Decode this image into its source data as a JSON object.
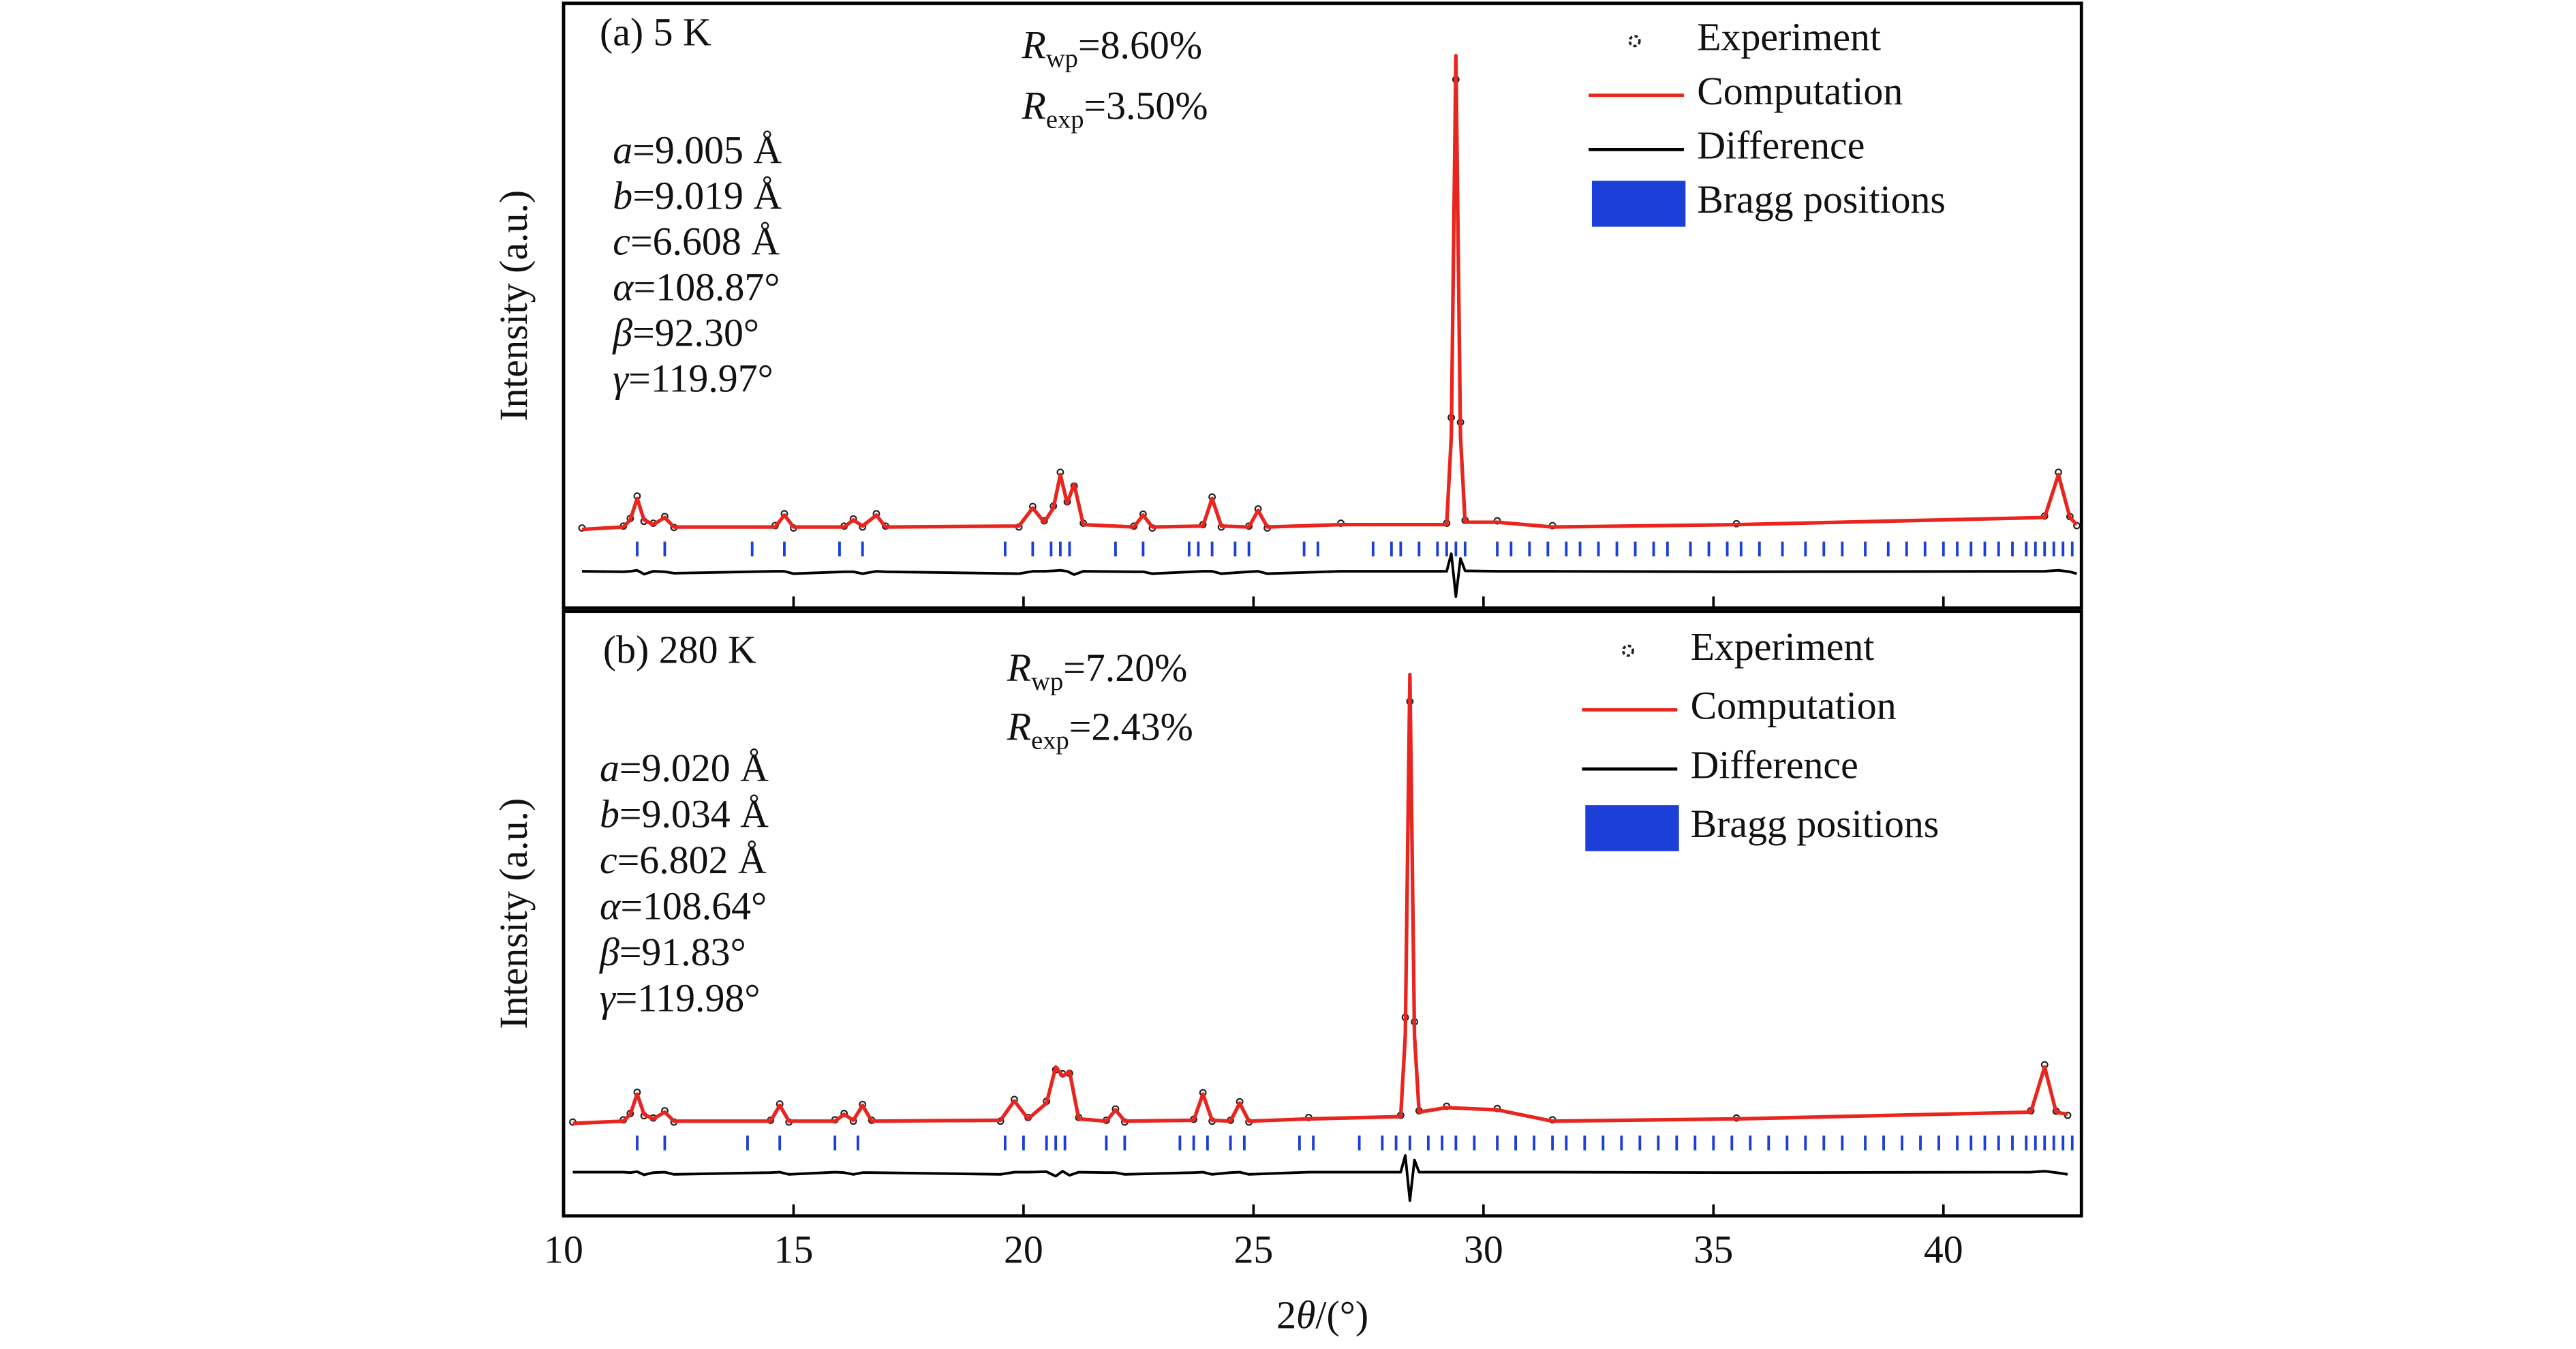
{
  "chart_data": [
    {
      "type": "line",
      "label": "(a) 5 K",
      "ylabel": "Intensity (a.u.)",
      "r_factors": [
        {
          "symbol": "R",
          "subscript": "wp",
          "text": "=8.60%"
        },
        {
          "symbol": "R",
          "subscript": "exp",
          "text": "=3.50%"
        }
      ],
      "lattice": [
        {
          "symbol": "a",
          "text": "=9.005 Å"
        },
        {
          "symbol": "b",
          "text": "=9.019 Å"
        },
        {
          "symbol": "c",
          "text": "=6.608 Å"
        },
        {
          "symbol": "α",
          "text": "=108.87°"
        },
        {
          "symbol": "β",
          "text": "=92.30°"
        },
        {
          "symbol": "γ",
          "text": "=119.97°"
        }
      ],
      "xlim": [
        10,
        43
      ],
      "ylim": [
        -16,
        111
      ],
      "xticks": [
        10,
        15,
        20,
        25,
        30,
        35,
        40
      ],
      "legend": "top-right",
      "x": [
        10.4,
        11.3,
        11.45,
        11.6,
        11.75,
        11.95,
        12.2,
        12.4,
        14.6,
        14.8,
        15.0,
        16.1,
        16.3,
        16.5,
        16.8,
        17.0,
        19.9,
        20.2,
        20.45,
        20.65,
        20.8,
        20.95,
        21.1,
        21.3,
        22.4,
        22.6,
        22.8,
        23.9,
        24.1,
        24.3,
        24.9,
        25.1,
        25.3,
        26.9,
        29.2,
        29.3,
        29.4,
        29.5,
        29.6,
        30.3,
        31.5,
        35.5,
        42.2,
        42.5,
        42.75,
        42.9
      ],
      "series": [
        {
          "name": "Experiment",
          "style": "points",
          "color": "#222222",
          "values": [
            0.8,
            1.2,
            2.8,
            7.5,
            2.2,
            1.8,
            3.2,
            0.9,
            1.3,
            3.8,
            0.8,
            1.2,
            2.7,
            1.0,
            3.8,
            1.2,
            1.0,
            5.3,
            2.3,
            5.4,
            12.5,
            6.3,
            9.6,
            1.8,
            1.2,
            3.7,
            0.8,
            1.5,
            7.3,
            1.0,
            1.2,
            4.8,
            0.8,
            1.8,
            1.8,
            24,
            95,
            23,
            2.4,
            2.3,
            1.3,
            1.7,
            3.3,
            12.5,
            3.2,
            1.3
          ]
        },
        {
          "name": "Computation",
          "style": "line",
          "color": "#e8251f",
          "values": [
            0.5,
            1,
            2.5,
            7,
            2.5,
            1.5,
            3,
            1,
            1,
            3.5,
            1,
            1,
            2.5,
            1.2,
            3.5,
            1,
            1.2,
            5,
            2,
            5,
            12,
            6,
            10,
            1.5,
            1,
            3.5,
            1,
            1.2,
            7,
            1.2,
            1,
            4.5,
            1,
            1.5,
            1.5,
            20,
            100,
            20,
            2,
            2,
            1,
            1.5,
            3,
            12,
            3,
            1.5
          ]
        },
        {
          "name": "Difference",
          "style": "line",
          "color": "#000000",
          "values": [
            -8.3,
            -8.4,
            -8.3,
            -8.1,
            -8.9,
            -8.3,
            -8.4,
            -8.7,
            -8.3,
            -8.3,
            -8.8,
            -8.4,
            -8.4,
            -8.8,
            -8.3,
            -8.4,
            -8.8,
            -8.3,
            -8.3,
            -8.2,
            -8.1,
            -8.3,
            -9.0,
            -8.3,
            -8.4,
            -8.4,
            -8.8,
            -8.3,
            -8.3,
            -8.8,
            -8.4,
            -8.3,
            -8.8,
            -8.3,
            -8.3,
            -4.6,
            -13.6,
            -5.6,
            -8.2,
            -8.3,
            -8.3,
            -8.4,
            -8.3,
            -8.1,
            -8.4,
            -8.8
          ]
        },
        {
          "name": "Bragg positions",
          "style": "ticks",
          "color": "#1c3fd8",
          "x": [
            11.6,
            12.2,
            14.1,
            14.8,
            16.0,
            16.5,
            19.6,
            20.2,
            20.6,
            20.8,
            21.0,
            22.0,
            22.6,
            23.6,
            23.8,
            24.1,
            24.6,
            24.9,
            26.1,
            26.4,
            27.6,
            28.0,
            28.2,
            28.6,
            29.0,
            29.2,
            29.4,
            29.6,
            30.3,
            30.6,
            31.0,
            31.4,
            31.8,
            32.1,
            32.5,
            32.9,
            33.3,
            33.7,
            34.0,
            34.5,
            34.9,
            35.3,
            35.6,
            36.0,
            36.5,
            37.0,
            37.4,
            37.8,
            38.3,
            38.8,
            39.2,
            39.6,
            40.0,
            40.3,
            40.6,
            40.9,
            41.2,
            41.5,
            41.8,
            42.0,
            42.2,
            42.4,
            42.6,
            42.8
          ]
        }
      ]
    },
    {
      "type": "line",
      "label": "(b) 280 K",
      "ylabel": "Intensity (a.u.)",
      "xlabel": {
        "prefix": "2",
        "symbol": "θ",
        "suffix": "/(°)"
      },
      "r_factors": [
        {
          "symbol": "R",
          "subscript": "wp",
          "text": "=7.20%"
        },
        {
          "symbol": "R",
          "subscript": "exp",
          "text": "=2.43%"
        }
      ],
      "lattice": [
        {
          "symbol": "a",
          "text": "=9.020 Å"
        },
        {
          "symbol": "b",
          "text": "=9.034 Å"
        },
        {
          "symbol": "c",
          "text": "=6.802 Å"
        },
        {
          "symbol": "α",
          "text": "=108.64°"
        },
        {
          "symbol": "β",
          "text": "=91.83°"
        },
        {
          "symbol": "γ",
          "text": "=119.98°"
        }
      ],
      "xlim": [
        10,
        43
      ],
      "ylim": [
        -20,
        114
      ],
      "xticks": [
        10,
        15,
        20,
        25,
        30,
        35,
        40
      ],
      "legend": "top-right",
      "x": [
        10.2,
        11.3,
        11.45,
        11.6,
        11.75,
        11.95,
        12.2,
        12.4,
        14.5,
        14.7,
        14.9,
        15.9,
        16.1,
        16.3,
        16.5,
        16.7,
        19.5,
        19.8,
        20.1,
        20.5,
        20.7,
        20.85,
        21.0,
        21.2,
        21.8,
        22.0,
        22.2,
        23.7,
        23.9,
        24.1,
        24.5,
        24.7,
        24.9,
        26.2,
        28.2,
        28.3,
        28.4,
        28.5,
        28.6,
        29.2,
        30.3,
        31.5,
        35.5,
        41.9,
        42.2,
        42.45,
        42.7
      ],
      "series": [
        {
          "name": "Experiment",
          "style": "points",
          "color": "#222222",
          "values": [
            0.8,
            1.3,
            2.7,
            7.4,
            2.2,
            1.7,
            3.3,
            0.8,
            1.2,
            4.8,
            0.8,
            1.3,
            2.7,
            1.0,
            4.7,
            1.2,
            1.0,
            5.8,
            1.8,
            5.4,
            12.4,
            11.5,
            11.6,
            1.8,
            1.2,
            3.7,
            0.8,
            1.4,
            7.3,
            1.0,
            1.2,
            5.3,
            0.8,
            1.8,
            2.3,
            24,
            94,
            23,
            3.3,
            4.3,
            3.8,
            1.3,
            1.7,
            3.3,
            13.5,
            3.2,
            2.3
          ]
        },
        {
          "name": "Computation",
          "style": "line",
          "color": "#e8251f",
          "values": [
            0.5,
            1,
            2.5,
            7,
            2.5,
            1.5,
            3,
            1,
            1,
            4.5,
            1,
            1,
            2.5,
            1.2,
            4.5,
            1,
            1.2,
            5.5,
            1.5,
            5,
            13,
            11,
            12,
            1.5,
            1,
            3.5,
            1,
            1.2,
            7,
            1.2,
            1,
            5,
            1,
            1.5,
            2,
            20,
            100,
            20,
            3,
            4,
            3.5,
            1,
            1.5,
            3,
            13,
            3,
            2.5
          ]
        },
        {
          "name": "Difference",
          "style": "line",
          "color": "#000000",
          "values": [
            -10.3,
            -10.3,
            -10.4,
            -10.2,
            -10.9,
            -10.4,
            -10.3,
            -10.8,
            -10.4,
            -10.3,
            -10.8,
            -10.3,
            -10.4,
            -10.8,
            -10.4,
            -10.4,
            -10.8,
            -10.3,
            -10.3,
            -10.2,
            -11.2,
            -10.1,
            -11.0,
            -10.3,
            -10.4,
            -10.4,
            -10.8,
            -10.4,
            -10.3,
            -10.8,
            -10.4,
            -10.3,
            -10.8,
            -10.3,
            -10.3,
            -6.6,
            -16.6,
            -7.6,
            -10.3,
            -10.3,
            -10.3,
            -10.3,
            -10.4,
            -10.3,
            -10.1,
            -10.4,
            -10.8
          ]
        },
        {
          "name": "Bragg positions",
          "style": "ticks",
          "color": "#1c3fd8",
          "x": [
            11.6,
            12.2,
            14.0,
            14.7,
            15.9,
            16.4,
            19.6,
            20.0,
            20.5,
            20.7,
            20.9,
            21.8,
            22.2,
            23.4,
            23.7,
            24.0,
            24.5,
            24.8,
            26.0,
            26.3,
            27.3,
            27.8,
            28.1,
            28.4,
            28.8,
            29.1,
            29.4,
            29.8,
            30.3,
            30.7,
            31.1,
            31.5,
            31.8,
            32.2,
            32.6,
            33.0,
            33.4,
            33.8,
            34.2,
            34.6,
            35.0,
            35.4,
            35.8,
            36.2,
            36.6,
            37.0,
            37.4,
            37.8,
            38.3,
            38.7,
            39.1,
            39.5,
            39.9,
            40.3,
            40.6,
            40.9,
            41.2,
            41.5,
            41.8,
            42.0,
            42.2,
            42.4,
            42.6,
            42.8
          ]
        }
      ]
    }
  ]
}
